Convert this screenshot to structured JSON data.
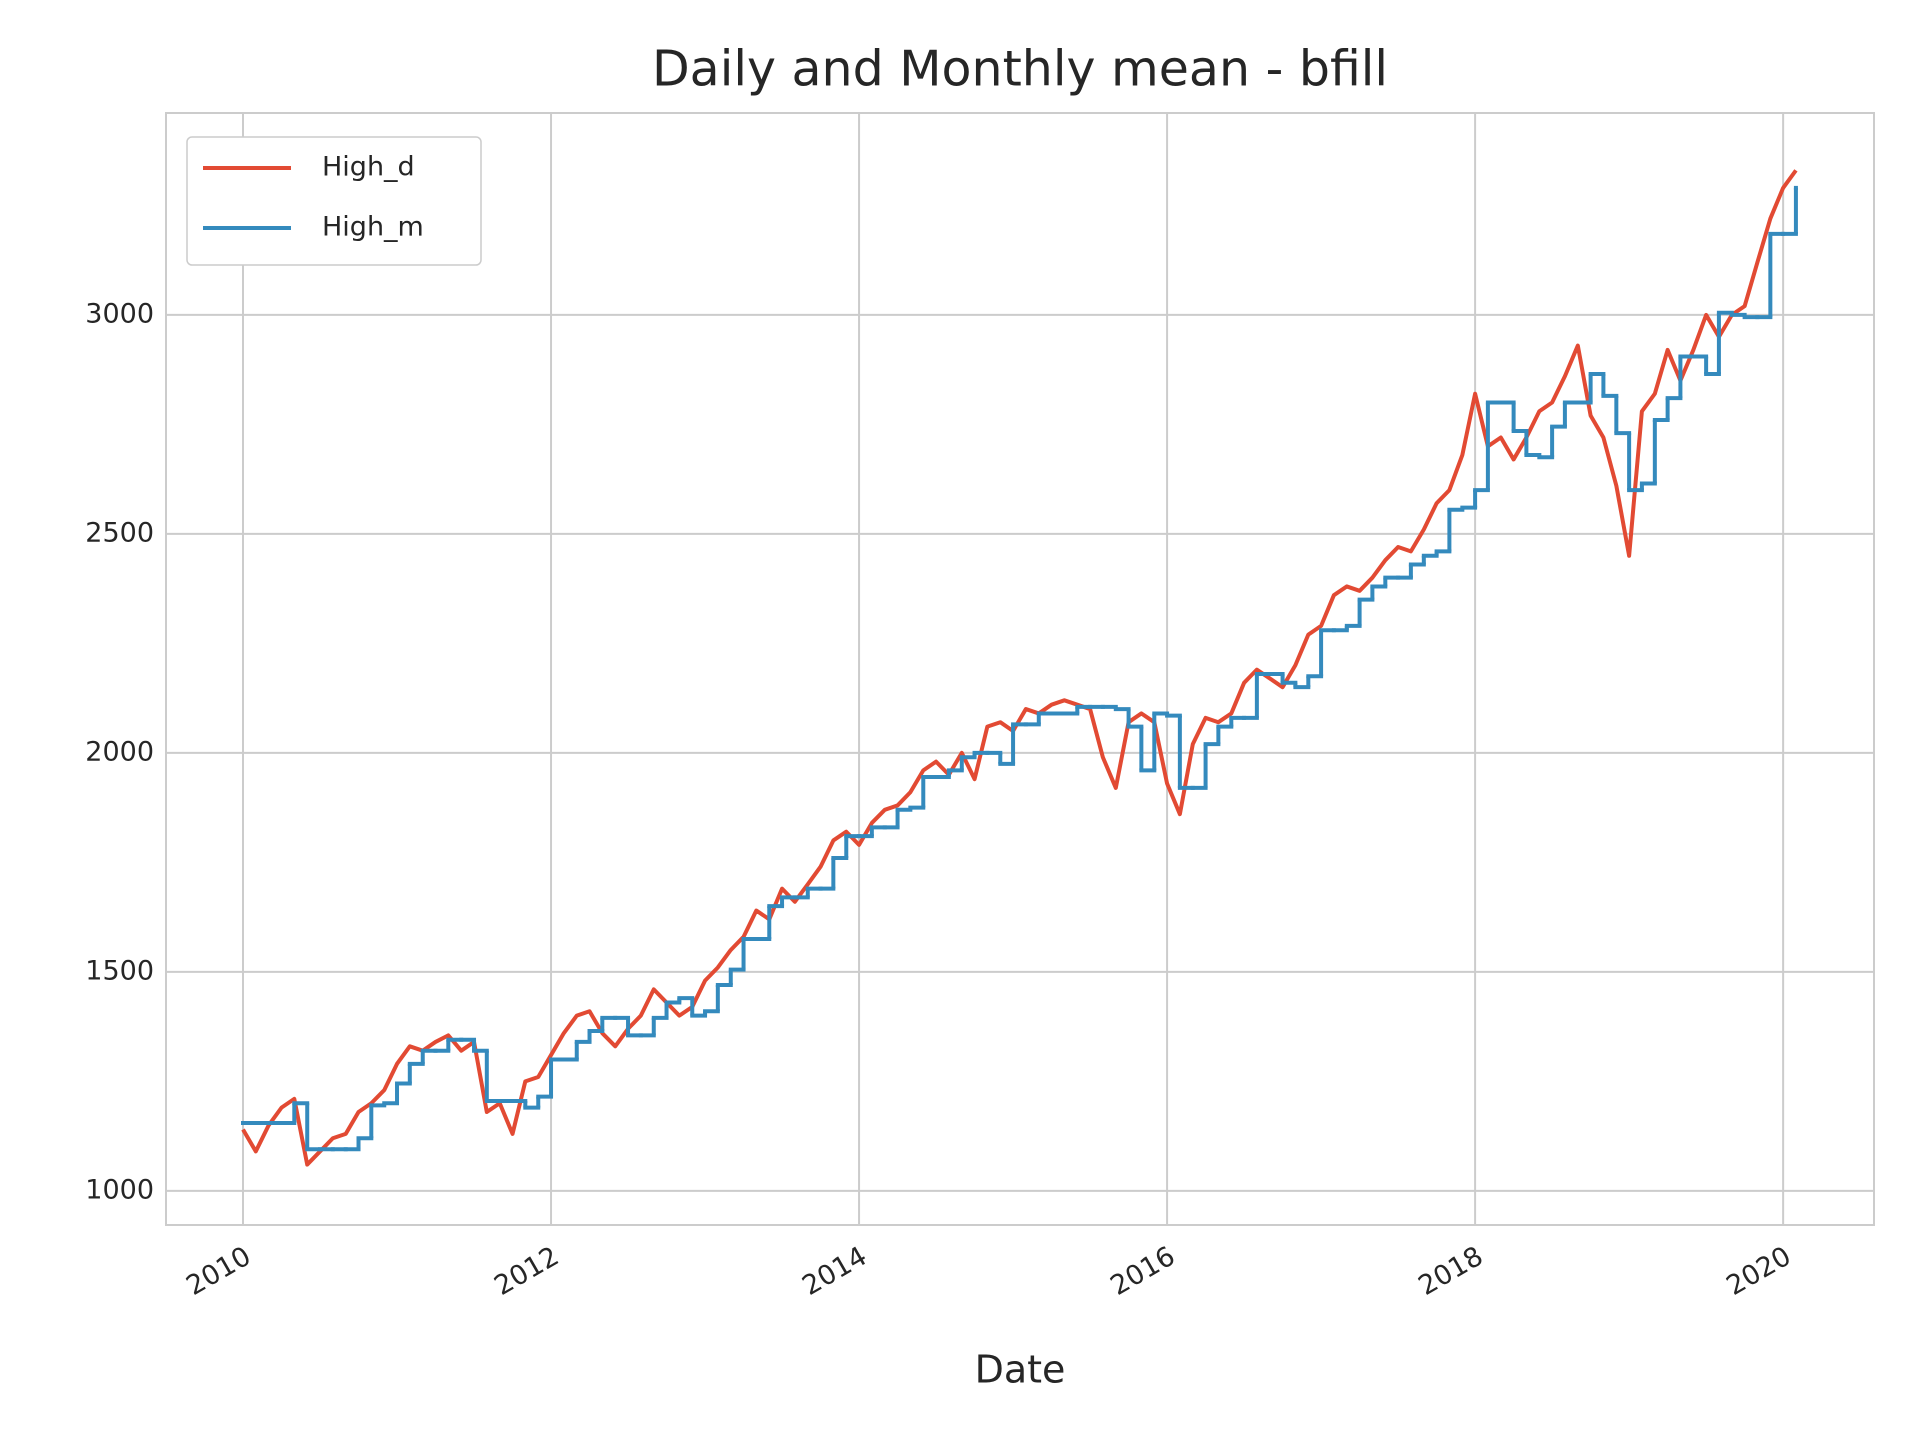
{
  "chart_data": {
    "type": "line",
    "title": "Daily and Monthly mean - bfill",
    "xlabel": "Date",
    "x": [
      2010.0,
      2010.083,
      2010.167,
      2010.25,
      2010.333,
      2010.417,
      2010.5,
      2010.583,
      2010.667,
      2010.75,
      2010.833,
      2010.917,
      2011.0,
      2011.083,
      2011.167,
      2011.25,
      2011.333,
      2011.417,
      2011.5,
      2011.583,
      2011.667,
      2011.75,
      2011.833,
      2011.917,
      2012.0,
      2012.083,
      2012.167,
      2012.25,
      2012.333,
      2012.417,
      2012.5,
      2012.583,
      2012.667,
      2012.75,
      2012.833,
      2012.917,
      2013.0,
      2013.083,
      2013.167,
      2013.25,
      2013.333,
      2013.417,
      2013.5,
      2013.583,
      2013.667,
      2013.75,
      2013.833,
      2013.917,
      2014.0,
      2014.083,
      2014.167,
      2014.25,
      2014.333,
      2014.417,
      2014.5,
      2014.583,
      2014.667,
      2014.75,
      2014.833,
      2014.917,
      2015.0,
      2015.083,
      2015.167,
      2015.25,
      2015.333,
      2015.417,
      2015.5,
      2015.583,
      2015.667,
      2015.75,
      2015.833,
      2015.917,
      2016.0,
      2016.083,
      2016.167,
      2016.25,
      2016.333,
      2016.417,
      2016.5,
      2016.583,
      2016.667,
      2016.75,
      2016.833,
      2016.917,
      2017.0,
      2017.083,
      2017.167,
      2017.25,
      2017.333,
      2017.417,
      2017.5,
      2017.583,
      2017.667,
      2017.75,
      2017.833,
      2017.917,
      2018.0,
      2018.083,
      2018.167,
      2018.25,
      2018.333,
      2018.417,
      2018.5,
      2018.583,
      2018.667,
      2018.75,
      2018.833,
      2018.917,
      2019.0,
      2019.083,
      2019.167,
      2019.25,
      2019.333,
      2019.417,
      2019.5,
      2019.583,
      2019.667,
      2019.75,
      2019.833,
      2019.917,
      2020.0,
      2020.083
    ],
    "series": [
      {
        "name": "High_d",
        "color": "#E24A33",
        "drawstyle": "default",
        "values": [
          1140,
          1090,
          1150,
          1190,
          1210,
          1060,
          1090,
          1120,
          1130,
          1180,
          1200,
          1230,
          1290,
          1330,
          1320,
          1340,
          1355,
          1320,
          1340,
          1180,
          1200,
          1130,
          1250,
          1260,
          1310,
          1360,
          1400,
          1410,
          1360,
          1330,
          1370,
          1400,
          1460,
          1430,
          1400,
          1420,
          1480,
          1510,
          1550,
          1580,
          1640,
          1620,
          1690,
          1660,
          1700,
          1740,
          1800,
          1820,
          1790,
          1840,
          1870,
          1880,
          1910,
          1960,
          1980,
          1950,
          2000,
          1940,
          2060,
          2070,
          2050,
          2100,
          2090,
          2110,
          2120,
          2110,
          2100,
          1990,
          1920,
          2070,
          2090,
          2070,
          1930,
          1860,
          2020,
          2080,
          2070,
          2090,
          2160,
          2190,
          2170,
          2150,
          2200,
          2270,
          2290,
          2360,
          2380,
          2370,
          2400,
          2440,
          2470,
          2460,
          2510,
          2570,
          2600,
          2680,
          2820,
          2700,
          2720,
          2670,
          2720,
          2780,
          2800,
          2860,
          2930,
          2770,
          2720,
          2610,
          2450,
          2780,
          2820,
          2920,
          2850,
          2920,
          3000,
          2950,
          3000,
          3020,
          3120,
          3220,
          3290,
          3330
        ]
      },
      {
        "name": "High_m",
        "color": "#348ABD",
        "drawstyle": "steps-post",
        "values": [
          1155,
          1155,
          1155,
          1155,
          1200,
          1095,
          1095,
          1095,
          1095,
          1120,
          1195,
          1200,
          1245,
          1290,
          1320,
          1320,
          1345,
          1345,
          1320,
          1205,
          1205,
          1205,
          1190,
          1215,
          1300,
          1300,
          1340,
          1365,
          1395,
          1395,
          1355,
          1355,
          1395,
          1430,
          1440,
          1400,
          1410,
          1470,
          1505,
          1575,
          1575,
          1650,
          1670,
          1670,
          1690,
          1690,
          1760,
          1810,
          1810,
          1830,
          1830,
          1870,
          1875,
          1945,
          1945,
          1960,
          1990,
          2000,
          2000,
          1975,
          2065,
          2065,
          2090,
          2090,
          2090,
          2105,
          2105,
          2105,
          2100,
          2060,
          1960,
          2090,
          2085,
          1920,
          1920,
          2020,
          2060,
          2080,
          2080,
          2180,
          2180,
          2160,
          2150,
          2175,
          2280,
          2280,
          2290,
          2350,
          2380,
          2400,
          2400,
          2430,
          2450,
          2460,
          2555,
          2560,
          2600,
          2800,
          2800,
          2735,
          2680,
          2675,
          2745,
          2800,
          2800,
          2865,
          2815,
          2730,
          2600,
          2615,
          2760,
          2810,
          2905,
          2905,
          2865,
          3005,
          3000,
          2995,
          2995,
          3185,
          3185,
          3290
        ]
      }
    ],
    "xlim": [
      2009.5,
      2020.59
    ],
    "xticks": [
      2010,
      2012,
      2014,
      2016,
      2018,
      2020
    ],
    "ylim": [
      922,
      3461
    ],
    "yticks": [
      1000,
      1500,
      2000,
      2500,
      3000
    ],
    "grid": true,
    "legend": "upper left"
  }
}
